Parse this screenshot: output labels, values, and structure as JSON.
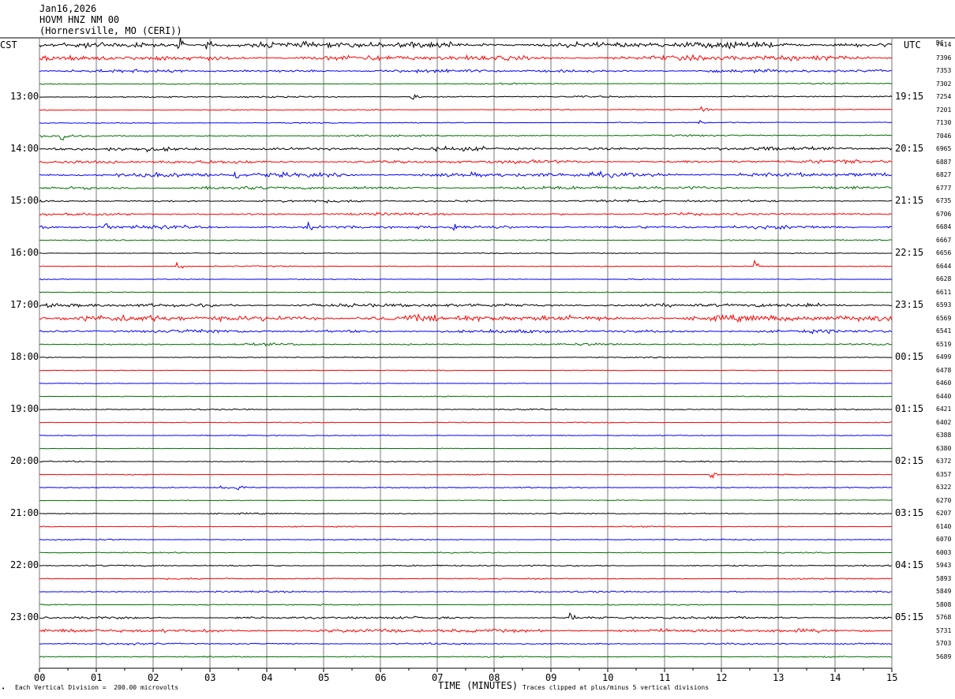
{
  "header": {
    "date": "Jan16,2026",
    "station": "HOVM HNZ NM 00",
    "location": "(Hornersville, MO (CERI))"
  },
  "left_zone_label": "CST",
  "right_zone_label": "UTC",
  "dc_label": "DC",
  "footer": {
    "scale_note": "Each Vertical Division =  200.00 microvolts",
    "clip_note": "Traces clipped at plus/minus 5 vertical divisions",
    "corner_mark": "•"
  },
  "colors": [
    "#000000",
    "#ff0000",
    "#0000ff",
    "#007000"
  ],
  "chart_data": {
    "type": "line",
    "xlabel": "TIME (MINUTES)",
    "xlim": [
      0,
      15
    ],
    "x_ticks": [
      "00",
      "01",
      "02",
      "03",
      "04",
      "05",
      "06",
      "07",
      "08",
      "09",
      "10",
      "11",
      "12",
      "13",
      "14",
      "15"
    ],
    "minutes_per_trace": 15,
    "trace_start_cst": "12:15",
    "left_hour_labels": [
      "13:00",
      "14:00",
      "15:00",
      "16:00",
      "17:00",
      "18:00",
      "19:00",
      "20:00",
      "21:00",
      "22:00",
      "23:00"
    ],
    "right_hour_labels": [
      "19:15",
      "20:15",
      "21:15",
      "22:15",
      "23:15",
      "00:15",
      "01:15",
      "02:15",
      "03:15",
      "04:15",
      "05:15"
    ],
    "dc_offsets": [
      7414,
      7396,
      7353,
      7302,
      7254,
      7201,
      7130,
      7046,
      6965,
      6887,
      6827,
      6777,
      6735,
      6706,
      6684,
      6667,
      6656,
      6644,
      6628,
      6611,
      6593,
      6569,
      6541,
      6519,
      6499,
      6478,
      6460,
      6440,
      6421,
      6402,
      6388,
      6380,
      6372,
      6357,
      6322,
      6270,
      6207,
      6140,
      6070,
      6003,
      5943,
      5893,
      5849,
      5808,
      5768,
      5731,
      5703,
      5689
    ],
    "trace_activity": [
      3,
      2.5,
      1.5,
      0.6,
      0.8,
      0.5,
      0.5,
      0.8,
      1.8,
      1.6,
      2.2,
      1.6,
      1.2,
      1.2,
      1.6,
      0.6,
      0.5,
      0.5,
      0.5,
      0.5,
      1.8,
      3,
      1.6,
      1,
      0.5,
      0.4,
      0.4,
      0.4,
      0.6,
      0.5,
      0.5,
      0.4,
      0.6,
      0.5,
      0.6,
      0.4,
      0.6,
      0.5,
      0.6,
      0.5,
      0.8,
      0.7,
      0.8,
      0.6,
      1.2,
      1.8,
      0.9,
      0.6
    ],
    "trace_slope": [
      0,
      0,
      0,
      0.35,
      0.35,
      0.4,
      0.45,
      0.5,
      0.4,
      0.4,
      0.35,
      0.3,
      0.15,
      0.1,
      0.05,
      0.05,
      0,
      0,
      0,
      0,
      0,
      0,
      0,
      0,
      0,
      0,
      0,
      0,
      0,
      0,
      0,
      0,
      0,
      0,
      0,
      0.3,
      0,
      0,
      0,
      0,
      0,
      0,
      0,
      0,
      0,
      0,
      0,
      0
    ],
    "events": [
      {
        "trace": 0,
        "minute": 2.45,
        "amp": 10
      },
      {
        "trace": 0,
        "minute": 2.95,
        "amp": 8
      },
      {
        "trace": 4,
        "minute": 6.55,
        "amp": 9
      },
      {
        "trace": 5,
        "minute": 11.65,
        "amp": 6
      },
      {
        "trace": 6,
        "minute": 11.6,
        "amp": 6
      },
      {
        "trace": 7,
        "minute": 0.38,
        "amp": 10
      },
      {
        "trace": 10,
        "minute": 3.45,
        "amp": 7
      },
      {
        "trace": 14,
        "minute": 1.15,
        "amp": 9
      },
      {
        "trace": 14,
        "minute": 1.92,
        "amp": 9
      },
      {
        "trace": 14,
        "minute": 4.72,
        "amp": 7
      },
      {
        "trace": 14,
        "minute": 7.3,
        "amp": 6
      },
      {
        "trace": 17,
        "minute": 2.42,
        "amp": 10
      },
      {
        "trace": 17,
        "minute": 12.6,
        "amp": 7
      },
      {
        "trace": 33,
        "minute": 11.8,
        "amp": 10
      },
      {
        "trace": 34,
        "minute": 3.15,
        "amp": 8
      },
      {
        "trace": 34,
        "minute": 3.45,
        "amp": 8
      },
      {
        "trace": 44,
        "minute": 9.35,
        "amp": 7
      }
    ]
  }
}
